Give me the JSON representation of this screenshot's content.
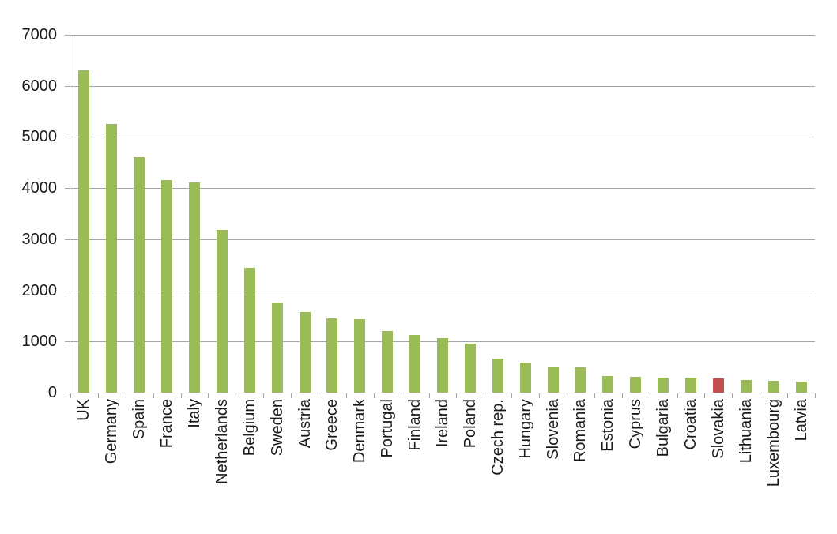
{
  "chart_data": {
    "type": "bar",
    "title": "",
    "xlabel": "",
    "ylabel": "",
    "categories": [
      "UK",
      "Germany",
      "Spain",
      "France",
      "Italy",
      "Netherlands",
      "Belgium",
      "Sweden",
      "Austria",
      "Greece",
      "Denmark",
      "Portugal",
      "Finland",
      "Ireland",
      "Poland",
      "Czech rep.",
      "Hungary",
      "Slovenia",
      "Romania",
      "Estonia",
      "Cyprus",
      "Bulgaria",
      "Croatia",
      "Slovakia",
      "Lithuania",
      "Luxembourg",
      "Latvia"
    ],
    "values": [
      6300,
      5250,
      4600,
      4160,
      4110,
      3180,
      2440,
      1760,
      1580,
      1450,
      1440,
      1200,
      1130,
      1060,
      960,
      670,
      580,
      515,
      500,
      320,
      305,
      290,
      290,
      285,
      240,
      225,
      210
    ],
    "highlighted_category": "Slovakia",
    "ylim": [
      0,
      7000
    ],
    "ytick_step": 1000,
    "ytick_labels": [
      "0",
      "1000",
      "2000",
      "3000",
      "4000",
      "5000",
      "6000",
      "7000"
    ],
    "grid": true,
    "legend": false,
    "x_labels_rotation_deg": -90,
    "colors": {
      "bar_default": "#9bbb59",
      "bar_highlight": "#c0504d",
      "axis": "#a6a6a6",
      "gridline": "#a6a6a6",
      "label_text": "#1a1a1a",
      "background": "#ffffff"
    }
  }
}
